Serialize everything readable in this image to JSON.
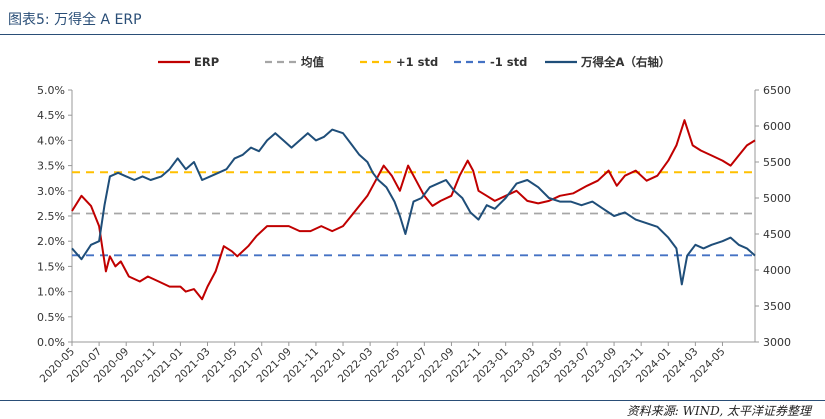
{
  "header": {
    "title": "图表5: 万得全 A ERP"
  },
  "source": "资料来源: WIND, 太平洋证券整理",
  "colors": {
    "erp": "#c00000",
    "mean": "#a6a6a6",
    "plus_std": "#ffc000",
    "minus_std": "#4472c4",
    "index": "#1f4e79",
    "header": "#2a4e77"
  },
  "chart_data": {
    "type": "line",
    "legend_position": "top",
    "grid": false,
    "xlabels": [
      "2020-05",
      "2020-07",
      "2020-09",
      "2020-11",
      "2021-01",
      "2021-03",
      "2021-05",
      "2021-07",
      "2021-09",
      "2021-11",
      "2022-01",
      "2022-03",
      "2022-05",
      "2022-07",
      "2022-09",
      "2022-11",
      "2023-01",
      "2023-03",
      "2023-05",
      "2023-07",
      "2023-09",
      "2023-11",
      "2024-01",
      "2024-03",
      "2024-05"
    ],
    "ylim_left": [
      0.0,
      5.0
    ],
    "yticks_left": [
      "0.0%",
      "0.5%",
      "1.0%",
      "1.5%",
      "2.0%",
      "2.5%",
      "3.0%",
      "3.5%",
      "4.0%",
      "4.5%",
      "5.0%"
    ],
    "ylim_right": [
      3000,
      6500
    ],
    "yticks_right": [
      "3000",
      "3500",
      "4000",
      "4500",
      "5000",
      "5500",
      "6000",
      "6500"
    ],
    "series": [
      {
        "name": "ERP",
        "axis": "left",
        "style": "solid",
        "points": [
          [
            0,
            2.6
          ],
          [
            0.35,
            2.9
          ],
          [
            0.7,
            2.7
          ],
          [
            1.0,
            2.3
          ],
          [
            1.25,
            1.4
          ],
          [
            1.4,
            1.7
          ],
          [
            1.6,
            1.5
          ],
          [
            1.8,
            1.6
          ],
          [
            2.1,
            1.3
          ],
          [
            2.5,
            1.2
          ],
          [
            2.8,
            1.3
          ],
          [
            3.2,
            1.2
          ],
          [
            3.6,
            1.1
          ],
          [
            4.0,
            1.1
          ],
          [
            4.2,
            1.0
          ],
          [
            4.5,
            1.05
          ],
          [
            4.8,
            0.85
          ],
          [
            5.0,
            1.1
          ],
          [
            5.3,
            1.4
          ],
          [
            5.6,
            1.9
          ],
          [
            5.9,
            1.8
          ],
          [
            6.1,
            1.7
          ],
          [
            6.5,
            1.9
          ],
          [
            6.8,
            2.1
          ],
          [
            7.2,
            2.3
          ],
          [
            7.6,
            2.3
          ],
          [
            8.0,
            2.3
          ],
          [
            8.4,
            2.2
          ],
          [
            8.8,
            2.2
          ],
          [
            9.2,
            2.3
          ],
          [
            9.6,
            2.2
          ],
          [
            10.0,
            2.3
          ],
          [
            10.3,
            2.5
          ],
          [
            10.6,
            2.7
          ],
          [
            10.9,
            2.9
          ],
          [
            11.2,
            3.2
          ],
          [
            11.5,
            3.5
          ],
          [
            11.8,
            3.3
          ],
          [
            12.1,
            3.0
          ],
          [
            12.4,
            3.5
          ],
          [
            12.7,
            3.2
          ],
          [
            13.0,
            2.9
          ],
          [
            13.3,
            2.7
          ],
          [
            13.6,
            2.8
          ],
          [
            14.0,
            2.9
          ],
          [
            14.3,
            3.3
          ],
          [
            14.6,
            3.6
          ],
          [
            14.8,
            3.4
          ],
          [
            15.0,
            3.0
          ],
          [
            15.3,
            2.9
          ],
          [
            15.6,
            2.8
          ],
          [
            16.0,
            2.9
          ],
          [
            16.4,
            3.0
          ],
          [
            16.8,
            2.8
          ],
          [
            17.2,
            2.75
          ],
          [
            17.6,
            2.8
          ],
          [
            18.0,
            2.9
          ],
          [
            18.5,
            2.95
          ],
          [
            19.0,
            3.1
          ],
          [
            19.4,
            3.2
          ],
          [
            19.8,
            3.4
          ],
          [
            20.1,
            3.1
          ],
          [
            20.4,
            3.3
          ],
          [
            20.8,
            3.4
          ],
          [
            21.2,
            3.2
          ],
          [
            21.6,
            3.3
          ],
          [
            22.0,
            3.6
          ],
          [
            22.3,
            3.9
          ],
          [
            22.6,
            4.4
          ],
          [
            22.9,
            3.9
          ],
          [
            23.2,
            3.8
          ],
          [
            23.6,
            3.7
          ],
          [
            24.0,
            3.6
          ],
          [
            24.3,
            3.5
          ],
          [
            24.6,
            3.7
          ],
          [
            24.9,
            3.9
          ],
          [
            25.2,
            4.0
          ]
        ]
      },
      {
        "name": "均值",
        "axis": "left",
        "style": "dashed",
        "points": [
          [
            0,
            2.55
          ],
          [
            25.2,
            2.55
          ]
        ]
      },
      {
        "name": "+1 std",
        "axis": "left",
        "style": "dashed",
        "points": [
          [
            0,
            3.37
          ],
          [
            25.2,
            3.37
          ]
        ]
      },
      {
        "name": "-1 std",
        "axis": "left",
        "style": "dashed",
        "points": [
          [
            0,
            1.72
          ],
          [
            25.2,
            1.72
          ]
        ]
      },
      {
        "name": "万得全A（右轴）",
        "axis": "right",
        "style": "solid",
        "points": [
          [
            0,
            4300
          ],
          [
            0.35,
            4150
          ],
          [
            0.7,
            4350
          ],
          [
            1.0,
            4400
          ],
          [
            1.2,
            4900
          ],
          [
            1.4,
            5300
          ],
          [
            1.7,
            5350
          ],
          [
            2.0,
            5300
          ],
          [
            2.3,
            5250
          ],
          [
            2.6,
            5300
          ],
          [
            2.9,
            5250
          ],
          [
            3.3,
            5300
          ],
          [
            3.6,
            5400
          ],
          [
            3.9,
            5550
          ],
          [
            4.2,
            5400
          ],
          [
            4.5,
            5500
          ],
          [
            4.8,
            5250
          ],
          [
            5.1,
            5300
          ],
          [
            5.4,
            5350
          ],
          [
            5.7,
            5400
          ],
          [
            6.0,
            5550
          ],
          [
            6.3,
            5600
          ],
          [
            6.6,
            5700
          ],
          [
            6.9,
            5650
          ],
          [
            7.2,
            5800
          ],
          [
            7.5,
            5900
          ],
          [
            7.8,
            5800
          ],
          [
            8.1,
            5700
          ],
          [
            8.4,
            5800
          ],
          [
            8.7,
            5900
          ],
          [
            9.0,
            5800
          ],
          [
            9.3,
            5850
          ],
          [
            9.6,
            5950
          ],
          [
            10.0,
            5900
          ],
          [
            10.3,
            5750
          ],
          [
            10.6,
            5600
          ],
          [
            10.9,
            5500
          ],
          [
            11.1,
            5350
          ],
          [
            11.3,
            5250
          ],
          [
            11.6,
            5150
          ],
          [
            11.9,
            4950
          ],
          [
            12.1,
            4750
          ],
          [
            12.3,
            4500
          ],
          [
            12.6,
            4950
          ],
          [
            12.9,
            5000
          ],
          [
            13.2,
            5150
          ],
          [
            13.5,
            5200
          ],
          [
            13.8,
            5250
          ],
          [
            14.1,
            5100
          ],
          [
            14.4,
            5000
          ],
          [
            14.7,
            4800
          ],
          [
            15.0,
            4700
          ],
          [
            15.3,
            4900
          ],
          [
            15.6,
            4850
          ],
          [
            16.0,
            5000
          ],
          [
            16.4,
            5200
          ],
          [
            16.8,
            5250
          ],
          [
            17.2,
            5150
          ],
          [
            17.6,
            5000
          ],
          [
            18.0,
            4950
          ],
          [
            18.4,
            4950
          ],
          [
            18.8,
            4900
          ],
          [
            19.2,
            4950
          ],
          [
            19.6,
            4850
          ],
          [
            20.0,
            4750
          ],
          [
            20.4,
            4800
          ],
          [
            20.8,
            4700
          ],
          [
            21.2,
            4650
          ],
          [
            21.6,
            4600
          ],
          [
            22.0,
            4450
          ],
          [
            22.3,
            4300
          ],
          [
            22.5,
            3800
          ],
          [
            22.7,
            4200
          ],
          [
            23.0,
            4350
          ],
          [
            23.3,
            4300
          ],
          [
            23.6,
            4350
          ],
          [
            24.0,
            4400
          ],
          [
            24.3,
            4450
          ],
          [
            24.6,
            4350
          ],
          [
            24.9,
            4300
          ],
          [
            25.2,
            4200
          ]
        ]
      }
    ]
  }
}
